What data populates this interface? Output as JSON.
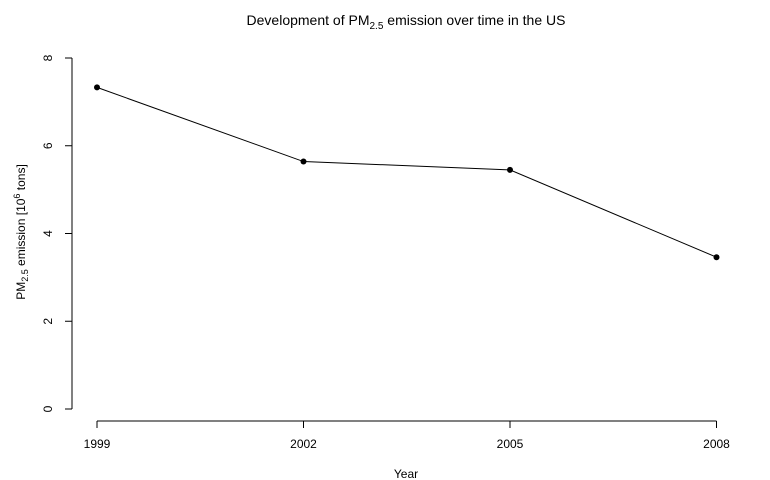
{
  "chart_data": {
    "type": "line",
    "title": {
      "prefix": "Development of PM",
      "sub": "2.5",
      "suffix": " emission over time in the US"
    },
    "xlabel": "Year",
    "ylabel": {
      "prefix": "PM",
      "sub": "2.5",
      "middle": " emission [10",
      "sup": "6",
      "suffix": " tons]"
    },
    "x": [
      1999,
      2002,
      2005,
      2008
    ],
    "x_tick_labels": [
      "1999",
      "2002",
      "2005",
      "2008"
    ],
    "ylim": [
      0,
      8
    ],
    "y_ticks": [
      0,
      2,
      4,
      6,
      8
    ],
    "y_tick_labels": [
      "0",
      "2",
      "4",
      "6",
      "8"
    ],
    "series": [
      {
        "values": [
          7.33,
          5.64,
          5.45,
          3.46
        ]
      }
    ],
    "grid": false,
    "legend": "none",
    "line_color": "#000000",
    "marker": "filled-circle"
  }
}
